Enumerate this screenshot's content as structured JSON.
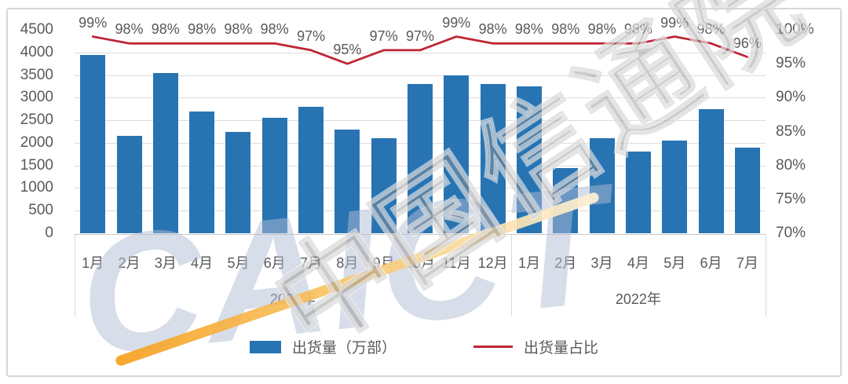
{
  "chart_data": {
    "type": "bar",
    "combo": "bar+line",
    "title": "",
    "categories": [
      "1月",
      "2月",
      "3月",
      "4月",
      "5月",
      "6月",
      "7月",
      "8月",
      "9月",
      "10月",
      "11月",
      "12月",
      "1月",
      "2月",
      "3月",
      "4月",
      "5月",
      "6月",
      "7月"
    ],
    "year_groups": [
      {
        "label": "2021年",
        "count": 12
      },
      {
        "label": "2022年",
        "count": 7
      }
    ],
    "series": [
      {
        "name": "出货量（万部）",
        "type": "bar",
        "axis": "left",
        "color": "#2874B2",
        "values": [
          3950,
          2150,
          3550,
          2700,
          2250,
          2550,
          2800,
          2300,
          2100,
          3300,
          3500,
          3300,
          3250,
          1450,
          2100,
          1800,
          2050,
          2750,
          1900
        ]
      },
      {
        "name": "出货量占比",
        "type": "line",
        "axis": "right",
        "color": "#BE2635",
        "values": [
          99,
          98,
          98,
          98,
          98,
          98,
          97,
          95,
          97,
          97,
          99,
          98,
          98,
          98,
          98,
          98,
          99,
          98,
          96
        ],
        "labels": [
          "99%",
          "98%",
          "98%",
          "98%",
          "98%",
          "98%",
          "97%",
          "95%",
          "97%",
          "97%",
          "99%",
          "98%",
          "98%",
          "98%",
          "98%",
          "98%",
          "99%",
          "98%",
          "96%"
        ]
      }
    ],
    "left_axis": {
      "min": 0,
      "max": 4500,
      "step": 500,
      "ticks": [
        "4500",
        "4000",
        "3500",
        "3000",
        "2500",
        "2000",
        "1500",
        "1000",
        "500",
        "0"
      ]
    },
    "right_axis": {
      "min": 70,
      "max": 100,
      "step": 5,
      "ticks": [
        "100%",
        "95%",
        "90%",
        "85%",
        "80%",
        "75%",
        "70%"
      ]
    },
    "grid": true,
    "legend_position": "bottom"
  },
  "legend": {
    "bar_label": "出货量（万部）",
    "line_label": "出货量占比"
  },
  "watermarks": {
    "caict_text": "CAICT",
    "cn_text": "中国信通院"
  },
  "colors": {
    "bar": "#2874B2",
    "line": "#BE2635",
    "axis_text": "#595959",
    "gridline": "#DCDCDC",
    "frame": "#D6D6D6",
    "watermark_blue": "#AFBCD4",
    "watermark_gray": "#949494",
    "stripe_orange": "#F6A01E"
  }
}
